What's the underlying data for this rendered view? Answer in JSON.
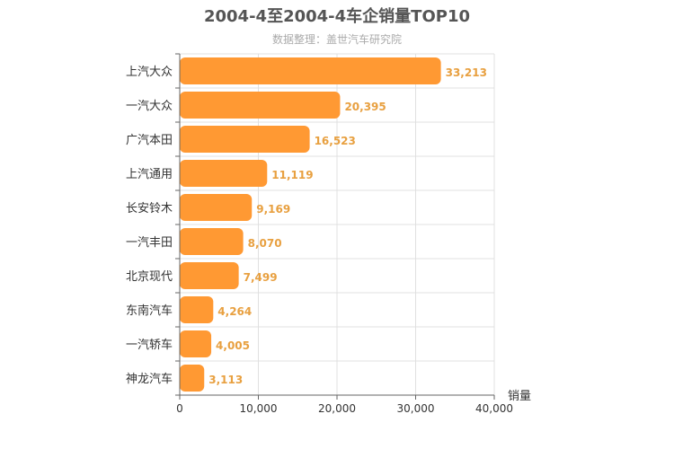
{
  "chart_data": {
    "type": "bar",
    "orientation": "horizontal",
    "title": "2004-4至2004-4车企销量TOP10",
    "subtitle": "数据整理：盖世汽车研究院",
    "xlabel": "销量",
    "ylabel": "",
    "categories": [
      "上汽大众",
      "一汽大众",
      "广汽本田",
      "上汽通用",
      "长安铃木",
      "一汽丰田",
      "北京现代",
      "东南汽车",
      "一汽轿车",
      "神龙汽车"
    ],
    "values": [
      33213,
      20395,
      16523,
      11119,
      9169,
      8070,
      7499,
      4264,
      4005,
      3113
    ],
    "value_labels": [
      "33,213",
      "20,395",
      "16,523",
      "11,119",
      "9,169",
      "8,070",
      "7,499",
      "4,264",
      "4,005",
      "3,113"
    ],
    "xlim": [
      0,
      40000
    ],
    "xticks": [
      0,
      10000,
      20000,
      30000,
      40000
    ],
    "xtick_labels": [
      "0",
      "10,000",
      "20,000",
      "30,000",
      "40,000"
    ],
    "grid": true,
    "bar_color": "#ff9933",
    "value_label_color": "#e8a040"
  }
}
